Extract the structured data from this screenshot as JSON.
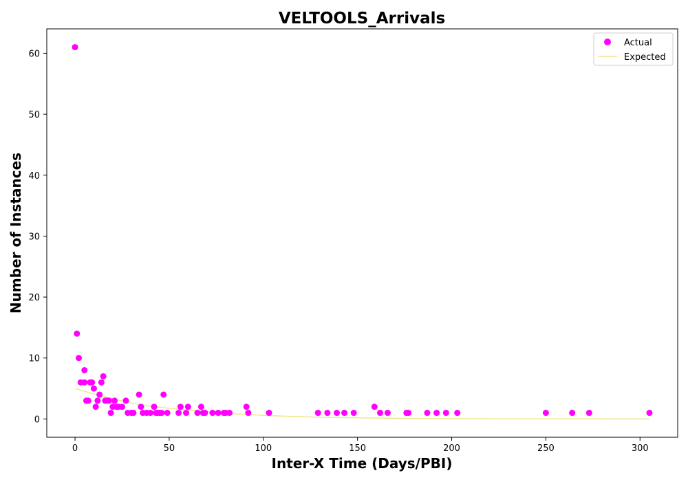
{
  "chart_data": {
    "type": "scatter",
    "title": "VELTOOLS_Arrivals",
    "xlabel": "Inter-X Time (Days/PBI)",
    "ylabel": "Number of Instances",
    "xlim": [
      -15,
      320
    ],
    "ylim": [
      -3,
      64
    ],
    "xticks": [
      0,
      50,
      100,
      150,
      200,
      250,
      300
    ],
    "yticks": [
      0,
      10,
      20,
      30,
      40,
      50,
      60
    ],
    "grid": false,
    "legend_position": "top-right",
    "series": [
      {
        "name": "Actual",
        "kind": "scatter",
        "color": "#ff00ff",
        "points": [
          [
            0,
            61
          ],
          [
            1,
            14
          ],
          [
            2,
            10
          ],
          [
            3,
            6
          ],
          [
            5,
            6
          ],
          [
            5,
            8
          ],
          [
            6,
            3
          ],
          [
            7,
            3
          ],
          [
            8,
            6
          ],
          [
            9,
            6
          ],
          [
            10,
            5
          ],
          [
            11,
            2
          ],
          [
            12,
            3
          ],
          [
            13,
            4
          ],
          [
            14,
            6
          ],
          [
            15,
            7
          ],
          [
            16,
            3
          ],
          [
            17,
            3
          ],
          [
            18,
            3
          ],
          [
            19,
            1
          ],
          [
            20,
            2
          ],
          [
            21,
            3
          ],
          [
            22,
            2
          ],
          [
            23,
            2
          ],
          [
            25,
            2
          ],
          [
            27,
            3
          ],
          [
            28,
            1
          ],
          [
            30,
            1
          ],
          [
            31,
            1
          ],
          [
            34,
            4
          ],
          [
            35,
            2
          ],
          [
            36,
            1
          ],
          [
            38,
            1
          ],
          [
            40,
            1
          ],
          [
            42,
            2
          ],
          [
            43,
            1
          ],
          [
            44,
            1
          ],
          [
            45,
            1
          ],
          [
            46,
            1
          ],
          [
            47,
            4
          ],
          [
            49,
            1
          ],
          [
            55,
            1
          ],
          [
            56,
            2
          ],
          [
            59,
            1
          ],
          [
            60,
            2
          ],
          [
            65,
            1
          ],
          [
            67,
            2
          ],
          [
            68,
            1
          ],
          [
            69,
            1
          ],
          [
            73,
            1
          ],
          [
            76,
            1
          ],
          [
            79,
            1
          ],
          [
            80,
            1
          ],
          [
            82,
            1
          ],
          [
            91,
            2
          ],
          [
            92,
            1
          ],
          [
            103,
            1
          ],
          [
            129,
            1
          ],
          [
            134,
            1
          ],
          [
            139,
            1
          ],
          [
            143,
            1
          ],
          [
            148,
            1
          ],
          [
            159,
            2
          ],
          [
            162,
            1
          ],
          [
            166,
            1
          ],
          [
            176,
            1
          ],
          [
            177,
            1
          ],
          [
            187,
            1
          ],
          [
            192,
            1
          ],
          [
            197,
            1
          ],
          [
            203,
            1
          ],
          [
            250,
            1
          ],
          [
            264,
            1
          ],
          [
            273,
            1
          ],
          [
            305,
            1
          ]
        ]
      },
      {
        "name": "Expected",
        "kind": "line",
        "color": "#f0e68c",
        "points": [
          [
            0,
            5.0
          ],
          [
            10,
            4.1
          ],
          [
            20,
            3.3
          ],
          [
            30,
            2.6
          ],
          [
            40,
            2.1
          ],
          [
            50,
            1.75
          ],
          [
            60,
            1.45
          ],
          [
            70,
            1.2
          ],
          [
            80,
            0.95
          ],
          [
            90,
            0.75
          ],
          [
            100,
            0.6
          ],
          [
            110,
            0.47
          ],
          [
            120,
            0.37
          ],
          [
            130,
            0.29
          ],
          [
            140,
            0.23
          ],
          [
            150,
            0.18
          ],
          [
            175,
            0.1
          ],
          [
            200,
            0.05
          ],
          [
            225,
            0.03
          ],
          [
            250,
            0.02
          ],
          [
            275,
            0.01
          ],
          [
            305,
            0.0
          ]
        ]
      }
    ]
  }
}
